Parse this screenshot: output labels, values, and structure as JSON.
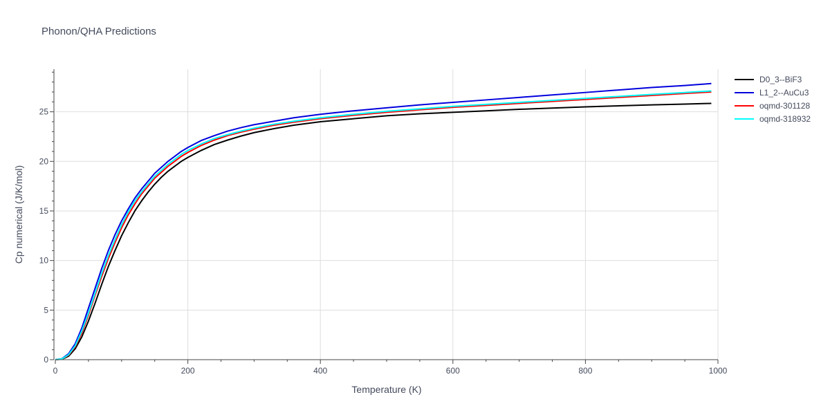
{
  "chart_data": {
    "type": "line",
    "title": "Phonon/QHA Predictions",
    "xlabel": "Temperature (K)",
    "ylabel": "Cp numerical (J/K/mol)",
    "xlim": [
      0,
      1000
    ],
    "ylim": [
      0,
      29.3
    ],
    "xticks": [
      0,
      200,
      400,
      600,
      800,
      1000
    ],
    "yticks": [
      0,
      5,
      10,
      15,
      20,
      25
    ],
    "grid": true,
    "legend_position": "top-right",
    "x": [
      0,
      10,
      20,
      30,
      40,
      50,
      60,
      70,
      80,
      90,
      100,
      110,
      120,
      130,
      140,
      150,
      160,
      170,
      180,
      190,
      200,
      220,
      240,
      260,
      280,
      300,
      330,
      360,
      400,
      450,
      500,
      550,
      600,
      650,
      700,
      750,
      800,
      850,
      900,
      950,
      990
    ],
    "series": [
      {
        "name": "D0_3--BiF3",
        "color": "#000000",
        "values": [
          0,
          0.05,
          0.35,
          1.1,
          2.3,
          3.9,
          5.7,
          7.6,
          9.4,
          11.0,
          12.5,
          13.8,
          15.0,
          16.0,
          16.9,
          17.7,
          18.4,
          19.0,
          19.5,
          20.0,
          20.4,
          21.1,
          21.7,
          22.15,
          22.55,
          22.9,
          23.3,
          23.65,
          24.0,
          24.3,
          24.6,
          24.8,
          24.95,
          25.1,
          25.25,
          25.38,
          25.5,
          25.6,
          25.7,
          25.78,
          25.85
        ]
      },
      {
        "name": "L1_2--AuCu3",
        "color": "#0000dd",
        "values": [
          0,
          0.1,
          0.6,
          1.6,
          3.2,
          5.2,
          7.2,
          9.2,
          11.0,
          12.6,
          14.0,
          15.2,
          16.3,
          17.2,
          18.0,
          18.8,
          19.4,
          20.0,
          20.5,
          21.0,
          21.4,
          22.1,
          22.6,
          23.05,
          23.4,
          23.7,
          24.05,
          24.4,
          24.75,
          25.1,
          25.4,
          25.7,
          25.95,
          26.2,
          26.45,
          26.7,
          26.95,
          27.2,
          27.45,
          27.65,
          27.85
        ]
      },
      {
        "name": "oqmd-301128",
        "color": "#ff0000",
        "values": [
          0,
          0.07,
          0.45,
          1.3,
          2.7,
          4.5,
          6.5,
          8.4,
          10.2,
          11.8,
          13.3,
          14.6,
          15.7,
          16.7,
          17.5,
          18.3,
          18.9,
          19.5,
          20.0,
          20.5,
          20.9,
          21.6,
          22.15,
          22.6,
          22.95,
          23.25,
          23.65,
          23.95,
          24.3,
          24.65,
          24.95,
          25.2,
          25.45,
          25.65,
          25.85,
          26.05,
          26.25,
          26.45,
          26.65,
          26.85,
          27.0
        ]
      },
      {
        "name": "oqmd-318932",
        "color": "#00ffff",
        "values": [
          0,
          0.08,
          0.5,
          1.4,
          2.9,
          4.7,
          6.7,
          8.7,
          10.5,
          12.1,
          13.6,
          14.9,
          16.0,
          16.9,
          17.7,
          18.5,
          19.1,
          19.7,
          20.2,
          20.7,
          21.1,
          21.75,
          22.3,
          22.7,
          23.05,
          23.35,
          23.75,
          24.05,
          24.4,
          24.75,
          25.05,
          25.3,
          25.55,
          25.75,
          25.95,
          26.15,
          26.35,
          26.55,
          26.75,
          26.95,
          27.1
        ]
      }
    ]
  }
}
